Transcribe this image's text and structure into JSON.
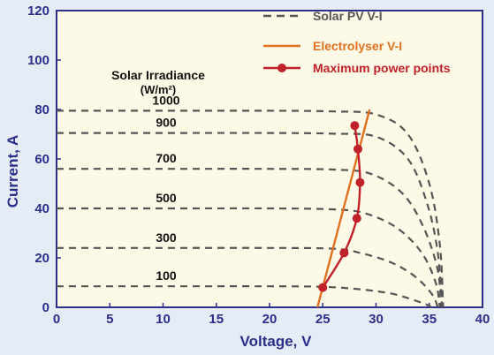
{
  "chart_data": {
    "type": "line",
    "xlabel": "Voltage, V",
    "ylabel": "Current, A",
    "xlim": [
      0,
      40
    ],
    "ylim": [
      0,
      120
    ],
    "xticks": [
      "0",
      "5",
      "10",
      "15",
      "20",
      "25",
      "30",
      "35",
      "40"
    ],
    "yticks": [
      "0",
      "20",
      "40",
      "60",
      "80",
      "100",
      "120"
    ],
    "grid": false,
    "legend_position": "top-right",
    "legend": [
      {
        "label": "Solar PV V-I",
        "style": "dashed",
        "color": "#555555"
      },
      {
        "label": "Electrolyser V-I",
        "style": "solid",
        "color": "#e07020"
      },
      {
        "label": "Maximum power points",
        "style": "line-marker",
        "color": "#c0202a"
      }
    ],
    "annotation_title": "Solar Irradiance",
    "annotation_unit": "(W/m²)",
    "series": [
      {
        "irradiance": "1000",
        "values": [
          [
            0,
            79.5
          ],
          [
            10,
            79.5
          ],
          [
            20,
            79.5
          ],
          [
            26,
            79.2
          ],
          [
            30,
            78
          ],
          [
            33,
            70
          ],
          [
            35,
            50
          ],
          [
            36,
            25
          ],
          [
            36.3,
            0
          ]
        ]
      },
      {
        "irradiance": "900",
        "values": [
          [
            0,
            70.5
          ],
          [
            10,
            70.5
          ],
          [
            20,
            70.5
          ],
          [
            26,
            70.2
          ],
          [
            30,
            69
          ],
          [
            33,
            60
          ],
          [
            34.8,
            42
          ],
          [
            35.8,
            22
          ],
          [
            36.2,
            0
          ]
        ]
      },
      {
        "irradiance": "700",
        "values": [
          [
            0,
            56
          ],
          [
            10,
            56
          ],
          [
            20,
            56
          ],
          [
            26,
            55.7
          ],
          [
            29.5,
            54
          ],
          [
            32.5,
            46
          ],
          [
            34.5,
            32
          ],
          [
            35.8,
            15
          ],
          [
            36.1,
            0
          ]
        ]
      },
      {
        "irradiance": "500",
        "values": [
          [
            0,
            40
          ],
          [
            10,
            40
          ],
          [
            20,
            40
          ],
          [
            26,
            39.6
          ],
          [
            29,
            38
          ],
          [
            32,
            32
          ],
          [
            34.3,
            22
          ],
          [
            35.6,
            10
          ],
          [
            36,
            0
          ]
        ]
      },
      {
        "irradiance": "300",
        "values": [
          [
            0,
            24
          ],
          [
            10,
            24
          ],
          [
            20,
            24
          ],
          [
            26,
            23.7
          ],
          [
            28.5,
            22
          ],
          [
            31.5,
            18
          ],
          [
            33.8,
            12
          ],
          [
            35.3,
            5
          ],
          [
            35.8,
            0
          ]
        ]
      },
      {
        "irradiance": "100",
        "values": [
          [
            0,
            8.5
          ],
          [
            10,
            8.5
          ],
          [
            20,
            8.5
          ],
          [
            25,
            8.3
          ],
          [
            28.5,
            7.3
          ],
          [
            31.5,
            5.5
          ],
          [
            33.5,
            3
          ],
          [
            34.8,
            1
          ],
          [
            35.2,
            0
          ]
        ]
      }
    ],
    "electrolyser": [
      [
        24.5,
        0
      ],
      [
        29.4,
        80
      ]
    ],
    "max_power_points": [
      [
        25,
        8
      ],
      [
        27,
        22
      ],
      [
        28.2,
        36
      ],
      [
        28.5,
        50.5
      ],
      [
        28.3,
        64
      ],
      [
        28,
        73.5
      ]
    ],
    "colors": {
      "background": "#e6ecf5",
      "plot_bg": "#fcf9e6",
      "axis": "#2b2f8a",
      "pv": "#555555",
      "electrolyser": "#e07020",
      "mpp": "#c0202a"
    }
  }
}
